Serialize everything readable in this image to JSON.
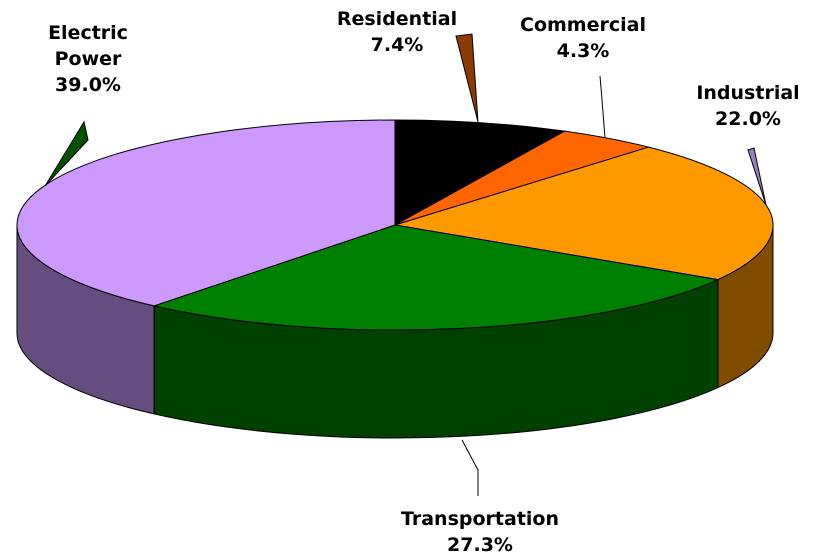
{
  "chart_data": {
    "type": "pie3d",
    "categories": [
      "Residential",
      "Commercial",
      "Industrial",
      "Transportation",
      "Electric Power"
    ],
    "values": [
      7.4,
      4.3,
      22.0,
      27.3,
      39.0
    ],
    "value_labels": [
      "7.4%",
      "4.3%",
      "22.0%",
      "27.3%",
      "39.0%"
    ],
    "colors": [
      "#000000",
      "#ff6600",
      "#ff9900",
      "#008000",
      "#cc99ff"
    ]
  }
}
